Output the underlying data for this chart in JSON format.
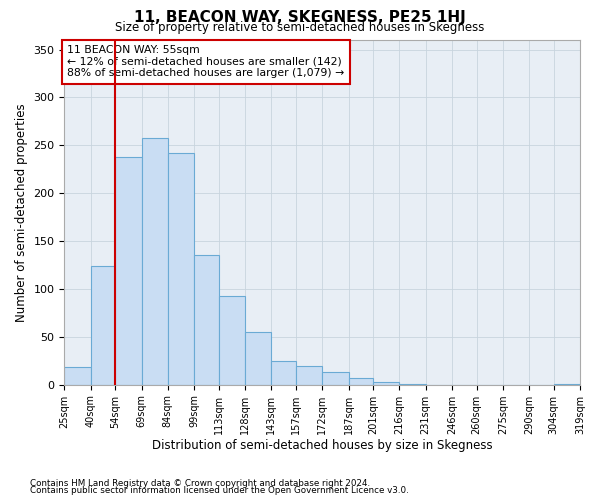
{
  "title": "11, BEACON WAY, SKEGNESS, PE25 1HJ",
  "subtitle": "Size of property relative to semi-detached houses in Skegness",
  "xlabel": "Distribution of semi-detached houses by size in Skegness",
  "ylabel": "Number of semi-detached properties",
  "footnote1": "Contains HM Land Registry data © Crown copyright and database right 2024.",
  "footnote2": "Contains public sector information licensed under the Open Government Licence v3.0.",
  "annotation_line1": "11 BEACON WAY: 55sqm",
  "annotation_line2": "← 12% of semi-detached houses are smaller (142)",
  "annotation_line3": "88% of semi-detached houses are larger (1,079) →",
  "bin_edges": [
    25,
    40,
    54,
    69,
    84,
    99,
    113,
    128,
    143,
    157,
    172,
    187,
    201,
    216,
    231,
    246,
    260,
    275,
    290,
    304,
    319
  ],
  "bar_heights": [
    18,
    124,
    238,
    258,
    242,
    135,
    93,
    55,
    25,
    20,
    13,
    7,
    3,
    1,
    0,
    0,
    0,
    0,
    0,
    1
  ],
  "bar_color": "#c9ddf3",
  "bar_edge_color": "#6aaad4",
  "vline_color": "#cc0000",
  "vline_x": 54,
  "annotation_box_color": "#cc0000",
  "ylim": [
    0,
    360
  ],
  "yticks": [
    0,
    50,
    100,
    150,
    200,
    250,
    300,
    350
  ],
  "grid_color": "#c8d4de",
  "background_color": "#e8eef5"
}
